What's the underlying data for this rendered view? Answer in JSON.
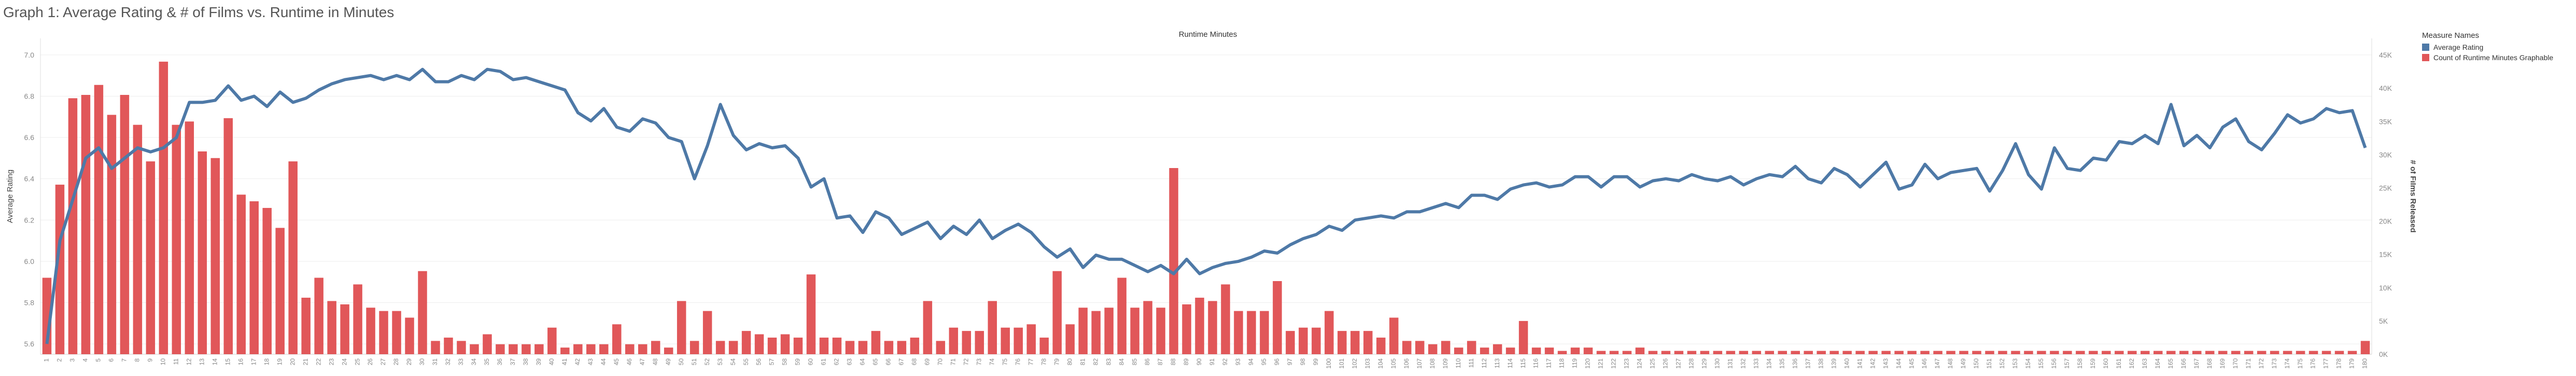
{
  "title": "Graph 1: Average Rating & # of Films vs. Runtime in Minutes",
  "colors": {
    "line": "#4e79a7",
    "bar": "#e15759",
    "grid": "#eeeeee",
    "axis": "#999999",
    "tick": "#888888"
  },
  "chart_data": {
    "type": "bar",
    "title": "Runtime Minutes",
    "ylabel_left": "Average Rating",
    "ylabel_right": "# of Films Released",
    "left_ticks": [
      5.6,
      5.8,
      6.0,
      6.2,
      6.4,
      6.6,
      6.8,
      7.0
    ],
    "right_ticks": [
      0,
      5000,
      10000,
      15000,
      20000,
      25000,
      30000,
      35000,
      40000,
      45000
    ],
    "right_tick_labels": [
      "0K",
      "5K",
      "10K",
      "15K",
      "20K",
      "25K",
      "30K",
      "35K",
      "40K",
      "45K"
    ],
    "ylim_left": [
      5.55,
      7.08
    ],
    "ylim_right": [
      0,
      47500
    ],
    "legend_title": "Measure Names",
    "legend": [
      {
        "name": "Average Rating",
        "color": "#4e79a7"
      },
      {
        "name": "Count of Runtime Minutes Graphable",
        "color": "#e15759"
      }
    ],
    "x": [
      1,
      2,
      3,
      4,
      5,
      6,
      7,
      8,
      9,
      10,
      11,
      12,
      13,
      14,
      15,
      16,
      17,
      18,
      19,
      20,
      21,
      22,
      23,
      24,
      25,
      26,
      27,
      28,
      29,
      30,
      31,
      32,
      33,
      34,
      35,
      36,
      37,
      38,
      39,
      40,
      41,
      42,
      43,
      44,
      45,
      46,
      47,
      48,
      49,
      50,
      51,
      52,
      53,
      54,
      55,
      56,
      57,
      58,
      59,
      60,
      61,
      62,
      63,
      64,
      65,
      66,
      67,
      68,
      69,
      70,
      71,
      72,
      73,
      74,
      75,
      76,
      77,
      78,
      79,
      80,
      81,
      82,
      83,
      84,
      85,
      86,
      87,
      88,
      89,
      90,
      91,
      92,
      93,
      94,
      95,
      96,
      97,
      98,
      99,
      100,
      101,
      102,
      103,
      104,
      105,
      106,
      107,
      108,
      109,
      110,
      111,
      112,
      113,
      114,
      115,
      116,
      117,
      118,
      119,
      120,
      121,
      122,
      123,
      124,
      125,
      126,
      127,
      128,
      129,
      130,
      131,
      132,
      133,
      134,
      135,
      136,
      137,
      138,
      139,
      140,
      141,
      142,
      143,
      144,
      145,
      146,
      147,
      148,
      149,
      150,
      151,
      152,
      153,
      154,
      155,
      156,
      157,
      158,
      159,
      160,
      161,
      162,
      163,
      164,
      165,
      166,
      167,
      168,
      169,
      170,
      171,
      172,
      173,
      174,
      175,
      176,
      177,
      178,
      179,
      180
    ],
    "series": [
      {
        "name": "Count of Runtime Minutes Graphable",
        "type": "bar",
        "axis": "right",
        "values": [
          11500,
          25500,
          38500,
          39000,
          40500,
          36000,
          39000,
          34500,
          29000,
          44000,
          34500,
          35000,
          30500,
          29500,
          35500,
          24000,
          23000,
          22000,
          19000,
          29000,
          8500,
          11500,
          8000,
          7500,
          10500,
          7000,
          6500,
          6500,
          5500,
          12500,
          2000,
          2500,
          2000,
          1500,
          3000,
          1500,
          1500,
          1500,
          1500,
          4000,
          1000,
          1500,
          1500,
          1500,
          4500,
          1500,
          1500,
          2000,
          1000,
          8000,
          2000,
          6500,
          2000,
          2000,
          3500,
          3000,
          2500,
          3000,
          2500,
          12000,
          2500,
          2500,
          2000,
          2000,
          3500,
          2000,
          2000,
          2500,
          8000,
          2000,
          4000,
          3500,
          3500,
          8000,
          4000,
          4000,
          4500,
          2500,
          12500,
          4500,
          7000,
          6500,
          7000,
          11500,
          7000,
          8000,
          7000,
          28000,
          7500,
          8500,
          8000,
          10500,
          6500,
          6500,
          6500,
          11000,
          3500,
          4000,
          4000,
          6500,
          3500,
          3500,
          3500,
          2500,
          5500,
          2000,
          2000,
          1500,
          2000,
          1000,
          2000,
          1000,
          1500,
          1000,
          5000,
          1000,
          1000,
          500,
          1000,
          1000,
          500,
          500,
          500,
          1000,
          500,
          500,
          500,
          500,
          500,
          500,
          500,
          500,
          500,
          500,
          500,
          500,
          500,
          500,
          500,
          500,
          500,
          500,
          500,
          500,
          500,
          500,
          500,
          500,
          500,
          500,
          500,
          500,
          500,
          500,
          500,
          500,
          500,
          500,
          500,
          500,
          500,
          500,
          500,
          500,
          500,
          500,
          500,
          500,
          500,
          500,
          500,
          500,
          500,
          500,
          500,
          500,
          500,
          500,
          500,
          2000
        ]
      },
      {
        "name": "Average Rating",
        "type": "line",
        "axis": "left",
        "values": [
          5.6,
          6.1,
          6.3,
          6.5,
          6.55,
          6.45,
          6.5,
          6.55,
          6.53,
          6.55,
          6.6,
          6.77,
          6.77,
          6.78,
          6.85,
          6.78,
          6.8,
          6.75,
          6.82,
          6.77,
          6.79,
          6.83,
          6.86,
          6.88,
          6.89,
          6.9,
          6.88,
          6.9,
          6.88,
          6.93,
          6.87,
          6.87,
          6.9,
          6.88,
          6.93,
          6.92,
          6.88,
          6.89,
          6.87,
          6.85,
          6.83,
          6.72,
          6.68,
          6.74,
          6.65,
          6.63,
          6.69,
          6.67,
          6.6,
          6.58,
          6.4,
          6.56,
          6.76,
          6.61,
          6.54,
          6.57,
          6.55,
          6.56,
          6.5,
          6.36,
          6.4,
          6.21,
          6.22,
          6.14,
          6.24,
          6.21,
          6.13,
          6.16,
          6.19,
          6.11,
          6.17,
          6.13,
          6.2,
          6.11,
          6.15,
          6.18,
          6.14,
          6.07,
          6.02,
          6.06,
          5.97,
          6.03,
          6.01,
          6.01,
          5.98,
          5.95,
          5.98,
          5.94,
          6.01,
          5.94,
          5.97,
          5.99,
          6.0,
          6.02,
          6.05,
          6.04,
          6.08,
          6.11,
          6.13,
          6.17,
          6.15,
          6.2,
          6.21,
          6.22,
          6.21,
          6.24,
          6.24,
          6.26,
          6.28,
          6.26,
          6.32,
          6.32,
          6.3,
          6.35,
          6.37,
          6.38,
          6.36,
          6.37,
          6.41,
          6.41,
          6.36,
          6.41,
          6.41,
          6.36,
          6.39,
          6.4,
          6.39,
          6.42,
          6.4,
          6.39,
          6.41,
          6.37,
          6.4,
          6.42,
          6.41,
          6.46,
          6.4,
          6.38,
          6.45,
          6.42,
          6.36,
          6.42,
          6.48,
          6.35,
          6.37,
          6.47,
          6.4,
          6.43,
          6.44,
          6.45,
          6.34,
          6.44,
          6.57,
          6.42,
          6.35,
          6.55,
          6.45,
          6.44,
          6.5,
          6.49,
          6.58,
          6.57,
          6.61,
          6.57,
          6.76,
          6.56,
          6.61,
          6.55,
          6.65,
          6.69,
          6.58,
          6.54,
          6.62,
          6.71,
          6.67,
          6.69,
          6.74,
          6.72,
          6.73,
          6.55
        ]
      }
    ]
  }
}
